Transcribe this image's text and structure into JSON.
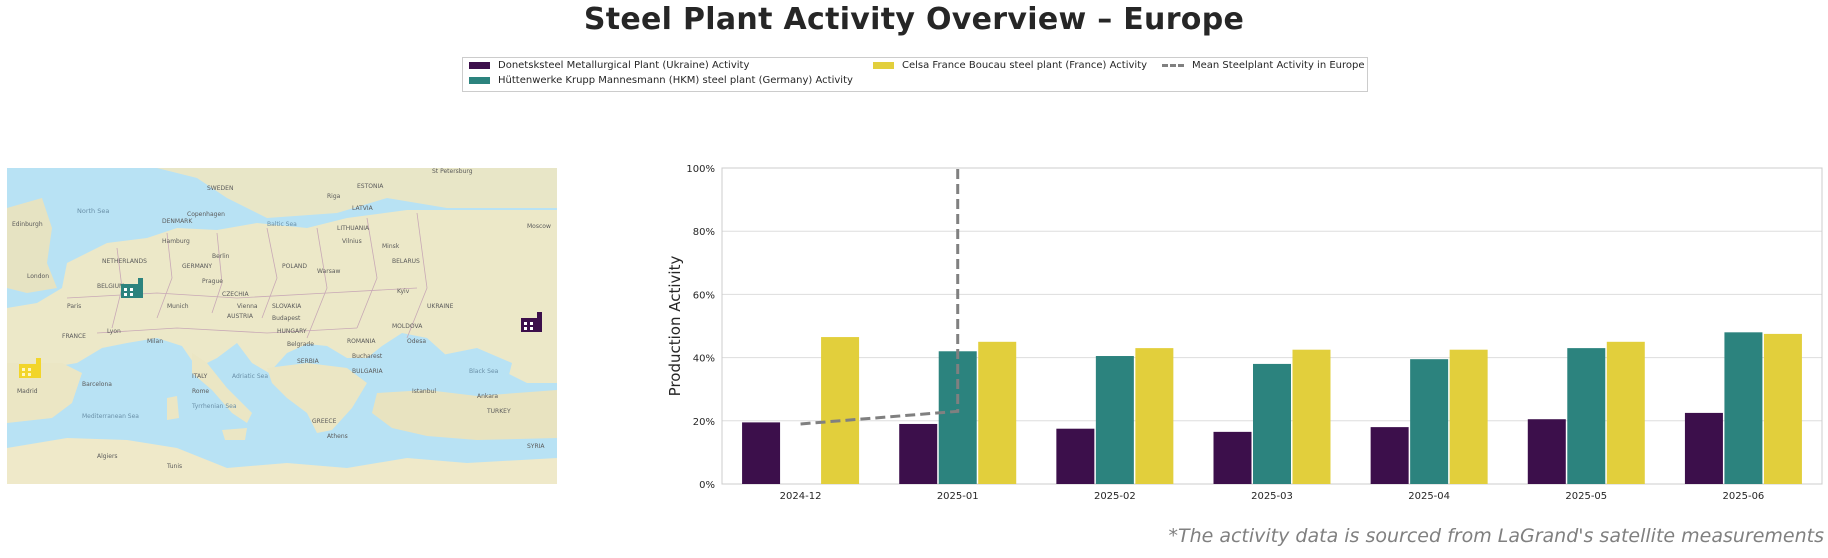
{
  "title": "Steel Plant Activity Overview – Europe",
  "footnote": "*The activity data is sourced from LaGrand's satellite measurements",
  "colors": {
    "donetsk": "#3c0f4b",
    "hkm": "#2c837e",
    "celsa": "#e2cf3c",
    "mean": "#808080"
  },
  "map": {
    "markers": [
      {
        "plant": "Donetsksteel Metallurgical Plant (Ukraine)",
        "icon": "factory-icon",
        "color": "#3c0f4b"
      },
      {
        "plant": "Hüttenwerke Krupp Mannesmann (HKM) steel plant (Germany)",
        "icon": "factory-icon",
        "color": "#2c837e"
      },
      {
        "plant": "Celsa France Boucau steel plant (France)",
        "icon": "factory-icon",
        "color": "#e2cf3c"
      }
    ],
    "labels": {
      "north_sea": "North Sea",
      "baltic_sea": "Baltic Sea",
      "sweden": "SWEDEN",
      "estonia": "ESTONIA",
      "latvia": "LATVIA",
      "lithuania": "LITHUANIA",
      "belarus": "BELARUS",
      "poland": "POLAND",
      "germany": "GERMANY",
      "denmark": "DENMARK",
      "ukraine": "UKRAINE",
      "france": "FRANCE",
      "austria": "AUSTRIA",
      "hungary": "HUNGARY",
      "romania": "ROMANIA",
      "italy": "ITALY",
      "greece": "GREECE",
      "turkey": "TURKEY",
      "black_sea": "Black Sea",
      "mediterranean": "Mediterranean Sea",
      "tyrrhenian": "Tyrrhenian Sea",
      "adriatic": "Adriatic Sea",
      "syria": "SYRIA",
      "netherlands": "NETHERLANDS",
      "belgium": "BELGIUM",
      "czechia": "CZECHIA",
      "slovakia": "SLOVAKIA",
      "moldova": "MOLDOVA",
      "bulgaria": "BULGARIA",
      "serbia": "SERBIA",
      "edinburgh": "Edinburgh",
      "london": "London",
      "paris": "Paris",
      "berlin": "Berlin",
      "warsaw": "Warsaw",
      "vienna": "Vienna",
      "rome": "Rome",
      "madrid": "Madrid",
      "kyiv": "Kyiv",
      "minsk": "Minsk",
      "riga": "Riga",
      "budapest": "Budapest",
      "bucharest": "Bucharest",
      "athens": "Athens",
      "istanbul": "Istanbul",
      "ankara": "Ankara",
      "belgrade": "Belgrade",
      "prague": "Prague",
      "munich": "Munich",
      "milan": "Milan",
      "barcelona": "Barcelona",
      "lyon": "Lyon",
      "hamburg": "Hamburg",
      "copenhagen": "Copenhagen",
      "st_petersburg": "St Petersburg",
      "moscow": "Moscow",
      "vilnius": "Vilnius",
      "odesa": "Odesa",
      "tunis": "Tunis",
      "algiers": "Algiers"
    }
  },
  "chart_data": {
    "type": "bar",
    "categories": [
      "2024-12",
      "2025-01",
      "2025-02",
      "2025-03",
      "2025-04",
      "2025-05",
      "2025-06"
    ],
    "series": [
      {
        "name": "Donetsksteel Metallurgical Plant (Ukraine) Activity",
        "color": "#3c0f4b",
        "values": [
          19.5,
          19,
          17.5,
          16.5,
          18,
          20.5,
          22.5
        ]
      },
      {
        "name": "Hüttenwerke Krupp Mannesmann (HKM) steel plant (Germany) Activity",
        "color": "#2c837e",
        "values": [
          null,
          42,
          40.5,
          38,
          39.5,
          43,
          48
        ]
      },
      {
        "name": "Celsa France Boucau steel plant (France) Activity",
        "color": "#e2cf3c",
        "values": [
          46.5,
          45,
          43,
          42.5,
          42.5,
          45,
          47.5
        ]
      }
    ],
    "mean_line": {
      "name": "Mean Steelplant Activity in Europe",
      "style": "dashed",
      "color": "#808080",
      "x": [
        "2024-12",
        "2025-01",
        "2025-01"
      ],
      "y": [
        19,
        23,
        100
      ]
    },
    "ylabel": "Production Activity",
    "ylim": [
      0,
      100
    ],
    "yticks": [
      0,
      20,
      40,
      60,
      80,
      100
    ],
    "ytick_labels": [
      "0%",
      "20%",
      "40%",
      "60%",
      "80%",
      "100%"
    ],
    "grid": "horizontal",
    "legend_position": "top-center"
  }
}
